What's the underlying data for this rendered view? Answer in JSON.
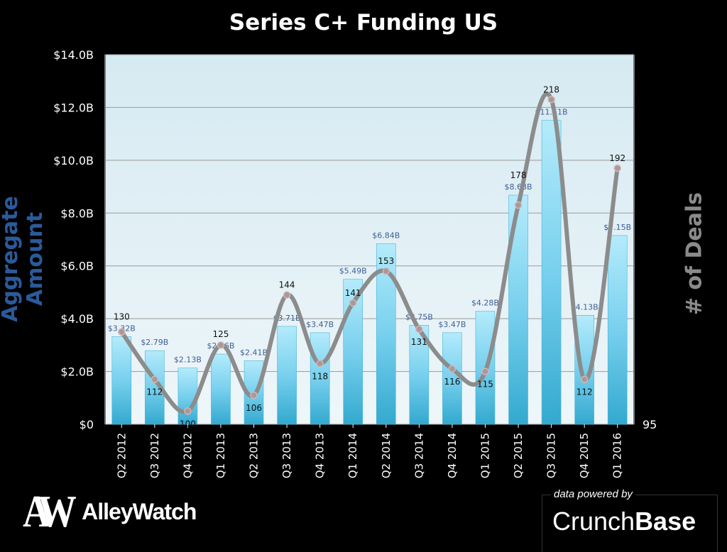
{
  "chart_data": {
    "type": "bar",
    "title": "Series C+  Funding US",
    "ylabel": "Aggregate  Amount",
    "y2label": "# of Deals",
    "categories": [
      "Q2 2012",
      "Q3 2012",
      "Q4 2012",
      "Q1 2013",
      "Q2 2013",
      "Q3 2013",
      "Q4 2013",
      "Q1 2014",
      "Q2 2014",
      "Q3 2014",
      "Q4 2014",
      "Q1 2015",
      "Q2 2015",
      "Q3 2015",
      "Q4 2015",
      "Q1 2016"
    ],
    "series": [
      {
        "name": "Aggregate Amount ($B)",
        "type": "bar",
        "values": [
          3.32,
          2.79,
          2.13,
          2.66,
          2.41,
          3.71,
          3.47,
          5.49,
          6.84,
          3.75,
          3.47,
          4.28,
          8.68,
          11.51,
          4.13,
          7.15
        ],
        "labels": [
          "$3.32B",
          "$2.79B",
          "$2.13B",
          "$2.66B",
          "$2.41B",
          "$3.71B",
          "$3.47B",
          "$5.49B",
          "$6.84B",
          "$3.75B",
          "$3.47B",
          "$4.28B",
          "$8.68B",
          "$11.51B",
          "$4.13B",
          "$7.15B"
        ]
      },
      {
        "name": "# of Deals",
        "type": "line",
        "values": [
          130,
          112,
          100,
          125,
          106,
          144,
          118,
          141,
          153,
          131,
          116,
          115,
          178,
          218,
          112,
          192
        ]
      }
    ],
    "ylim": [
      0,
      14
    ],
    "yticks": [
      "$0",
      "$2.0B",
      "$4.0B",
      "$6.0B",
      "$8.0B",
      "$10.0B",
      "$12.0B",
      "$14.0B"
    ],
    "y2lim": [
      95,
      235
    ],
    "y2ticks": [
      "95"
    ],
    "grid": true,
    "colors": {
      "bar": "#5cc3e3",
      "line": "#8c8c8c",
      "label": "#3f5f95",
      "plot_bg": "#e4f0f5"
    }
  },
  "branding": {
    "alleywatch_mark": "AW",
    "alleywatch": "AlleyWatch",
    "powered_by": "data powered by",
    "crunch": "Crunch",
    "base": "Base"
  }
}
